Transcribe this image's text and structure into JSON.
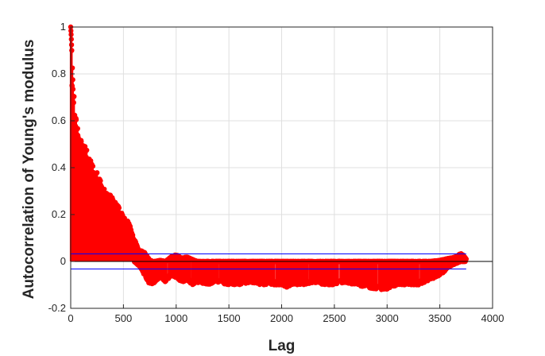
{
  "chart_data": {
    "type": "stem",
    "title": "",
    "xlabel": "Lag",
    "ylabel": "Autocorrelation of Young's modulus",
    "xlim": [
      0,
      4000
    ],
    "ylim": [
      -0.2,
      1
    ],
    "xticks": [
      "0",
      "500",
      "1000",
      "1500",
      "2000",
      "2500",
      "3000",
      "3500",
      "4000"
    ],
    "yticks": [
      "-0.2",
      "0",
      "0.2",
      "0.4",
      "0.6",
      "0.8",
      "1"
    ],
    "grid": true,
    "max_lag": 3750,
    "confidence_bounds": [
      0.032,
      -0.032
    ],
    "colors": {
      "stems": "#ff0000",
      "bounds": "#0000ff",
      "zero_line": "#000000"
    },
    "envelope": {
      "upper": [
        [
          0,
          1.0
        ],
        [
          5,
          0.96
        ],
        [
          10,
          0.9
        ],
        [
          20,
          0.8
        ],
        [
          30,
          0.72
        ],
        [
          50,
          0.64
        ],
        [
          70,
          0.57
        ],
        [
          90,
          0.53
        ],
        [
          120,
          0.52
        ],
        [
          150,
          0.48
        ],
        [
          200,
          0.42
        ],
        [
          250,
          0.38
        ],
        [
          300,
          0.33
        ],
        [
          350,
          0.3
        ],
        [
          400,
          0.27
        ],
        [
          450,
          0.24
        ],
        [
          500,
          0.19
        ],
        [
          550,
          0.17
        ],
        [
          600,
          0.1
        ],
        [
          650,
          0.05
        ],
        [
          700,
          0.04
        ],
        [
          750,
          0.005
        ],
        [
          800,
          0.0
        ],
        [
          850,
          0.005
        ],
        [
          900,
          0.0
        ],
        [
          950,
          0.02
        ],
        [
          1000,
          0.03
        ],
        [
          1050,
          0.015
        ],
        [
          1100,
          0.02
        ],
        [
          1200,
          0.0
        ],
        [
          1500,
          0.0
        ],
        [
          2000,
          0.0
        ],
        [
          2500,
          0.0
        ],
        [
          3000,
          0.0
        ],
        [
          3400,
          0.0
        ],
        [
          3500,
          0.005
        ],
        [
          3550,
          0.01
        ],
        [
          3600,
          0.015
        ],
        [
          3650,
          0.02
        ],
        [
          3700,
          0.035
        ],
        [
          3730,
          0.025
        ],
        [
          3750,
          0.01
        ]
      ],
      "lower": [
        [
          0,
          1.0
        ],
        [
          10,
          0.0
        ],
        [
          600,
          0.0
        ],
        [
          650,
          -0.02
        ],
        [
          700,
          -0.06
        ],
        [
          750,
          -0.1
        ],
        [
          800,
          -0.09
        ],
        [
          850,
          -0.07
        ],
        [
          900,
          -0.09
        ],
        [
          950,
          -0.06
        ],
        [
          1000,
          -0.07
        ],
        [
          1050,
          -0.09
        ],
        [
          1100,
          -0.08
        ],
        [
          1150,
          -0.1
        ],
        [
          1200,
          -0.09
        ],
        [
          1300,
          -0.1
        ],
        [
          1400,
          -0.09
        ],
        [
          1500,
          -0.1
        ],
        [
          1600,
          -0.1
        ],
        [
          1700,
          -0.09
        ],
        [
          1800,
          -0.1
        ],
        [
          1900,
          -0.1
        ],
        [
          2000,
          -0.1
        ],
        [
          2050,
          -0.11
        ],
        [
          2100,
          -0.1
        ],
        [
          2200,
          -0.1
        ],
        [
          2300,
          -0.09
        ],
        [
          2400,
          -0.1
        ],
        [
          2500,
          -0.1
        ],
        [
          2600,
          -0.09
        ],
        [
          2700,
          -0.1
        ],
        [
          2800,
          -0.11
        ],
        [
          2900,
          -0.12
        ],
        [
          3000,
          -0.12
        ],
        [
          3100,
          -0.1
        ],
        [
          3200,
          -0.1
        ],
        [
          3300,
          -0.1
        ],
        [
          3400,
          -0.08
        ],
        [
          3500,
          -0.06
        ],
        [
          3550,
          -0.04
        ],
        [
          3600,
          -0.02
        ],
        [
          3650,
          -0.01
        ],
        [
          3700,
          0.0
        ],
        [
          3750,
          0.0
        ]
      ]
    }
  }
}
